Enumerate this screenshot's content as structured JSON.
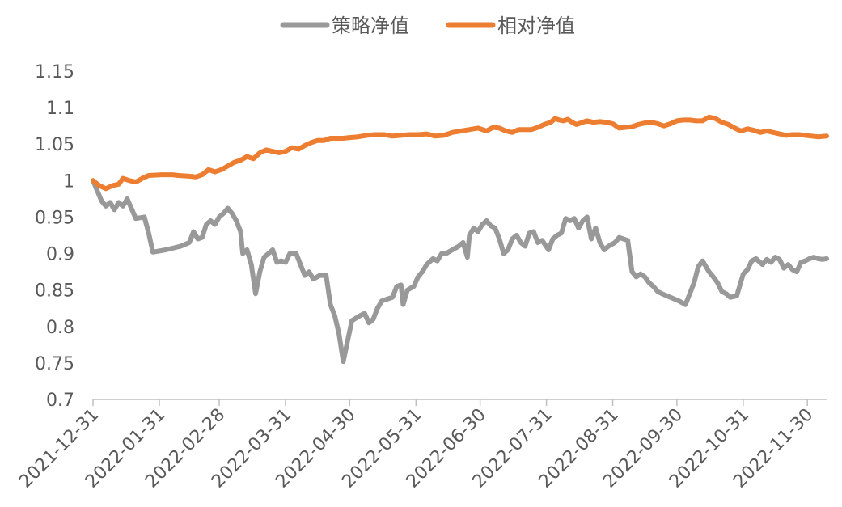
{
  "chart_data": {
    "type": "line",
    "title": "",
    "xlabel": "",
    "ylabel": "",
    "ylim": [
      0.7,
      1.15
    ],
    "yticks": [
      "0.7",
      "0.75",
      "0.8",
      "0.85",
      "0.9",
      "0.95",
      "1",
      "1.05",
      "1.1",
      "1.15"
    ],
    "xlim": [
      "2021-12-31",
      "2022-12-09"
    ],
    "xticks": [
      "2021-12-31",
      "2022-01-31",
      "2022-02-28",
      "2022-03-31",
      "2022-04-30",
      "2022-05-31",
      "2022-06-30",
      "2022-07-31",
      "2022-08-31",
      "2022-09-30",
      "2022-10-31",
      "2022-11-30"
    ],
    "grid": false,
    "legend_position": "top-center",
    "series": [
      {
        "name": "策略净值",
        "color": "#999999",
        "points": [
          [
            "2021-12-31",
            1.0
          ],
          [
            "2022-01-04",
            0.972
          ],
          [
            "2022-01-06",
            0.965
          ],
          [
            "2022-01-08",
            0.97
          ],
          [
            "2022-01-10",
            0.96
          ],
          [
            "2022-01-12",
            0.97
          ],
          [
            "2022-01-14",
            0.965
          ],
          [
            "2022-01-16",
            0.975
          ],
          [
            "2022-01-20",
            0.948
          ],
          [
            "2022-01-24",
            0.95
          ],
          [
            "2022-01-26",
            0.928
          ],
          [
            "2022-01-28",
            0.902
          ],
          [
            "2022-02-03",
            0.905
          ],
          [
            "2022-02-10",
            0.91
          ],
          [
            "2022-02-14",
            0.915
          ],
          [
            "2022-02-16",
            0.93
          ],
          [
            "2022-02-18",
            0.92
          ],
          [
            "2022-02-20",
            0.922
          ],
          [
            "2022-02-22",
            0.94
          ],
          [
            "2022-02-24",
            0.945
          ],
          [
            "2022-02-26",
            0.94
          ],
          [
            "2022-02-28",
            0.95
          ],
          [
            "2022-03-02",
            0.955
          ],
          [
            "2022-03-04",
            0.962
          ],
          [
            "2022-03-06",
            0.955
          ],
          [
            "2022-03-08",
            0.945
          ],
          [
            "2022-03-10",
            0.93
          ],
          [
            "2022-03-11",
            0.9
          ],
          [
            "2022-03-13",
            0.905
          ],
          [
            "2022-03-15",
            0.885
          ],
          [
            "2022-03-17",
            0.845
          ],
          [
            "2022-03-19",
            0.875
          ],
          [
            "2022-03-21",
            0.895
          ],
          [
            "2022-03-23",
            0.9
          ],
          [
            "2022-03-25",
            0.905
          ],
          [
            "2022-03-27",
            0.888
          ],
          [
            "2022-03-29",
            0.89
          ],
          [
            "2022-03-31",
            0.888
          ],
          [
            "2022-04-02",
            0.9
          ],
          [
            "2022-04-05",
            0.9
          ],
          [
            "2022-04-07",
            0.885
          ],
          [
            "2022-04-09",
            0.87
          ],
          [
            "2022-04-11",
            0.875
          ],
          [
            "2022-04-13",
            0.865
          ],
          [
            "2022-04-16",
            0.87
          ],
          [
            "2022-04-19",
            0.87
          ],
          [
            "2022-04-21",
            0.83
          ],
          [
            "2022-04-23",
            0.815
          ],
          [
            "2022-04-25",
            0.79
          ],
          [
            "2022-04-27",
            0.752
          ],
          [
            "2022-04-29",
            0.78
          ],
          [
            "2022-05-01",
            0.808
          ],
          [
            "2022-05-05",
            0.815
          ],
          [
            "2022-05-07",
            0.818
          ],
          [
            "2022-05-09",
            0.805
          ],
          [
            "2022-05-11",
            0.81
          ],
          [
            "2022-05-13",
            0.825
          ],
          [
            "2022-05-15",
            0.835
          ],
          [
            "2022-05-18",
            0.838
          ],
          [
            "2022-05-20",
            0.84
          ],
          [
            "2022-05-22",
            0.855
          ],
          [
            "2022-05-24",
            0.857
          ],
          [
            "2022-05-25",
            0.83
          ],
          [
            "2022-05-27",
            0.85
          ],
          [
            "2022-05-30",
            0.855
          ],
          [
            "2022-06-01",
            0.868
          ],
          [
            "2022-06-03",
            0.875
          ],
          [
            "2022-06-05",
            0.885
          ],
          [
            "2022-06-08",
            0.893
          ],
          [
            "2022-06-10",
            0.89
          ],
          [
            "2022-06-12",
            0.9
          ],
          [
            "2022-06-14",
            0.9
          ],
          [
            "2022-06-17",
            0.905
          ],
          [
            "2022-06-20",
            0.91
          ],
          [
            "2022-06-22",
            0.915
          ],
          [
            "2022-06-24",
            0.895
          ],
          [
            "2022-06-25",
            0.925
          ],
          [
            "2022-06-27",
            0.935
          ],
          [
            "2022-06-29",
            0.93
          ],
          [
            "2022-07-01",
            0.94
          ],
          [
            "2022-07-03",
            0.945
          ],
          [
            "2022-07-05",
            0.938
          ],
          [
            "2022-07-07",
            0.935
          ],
          [
            "2022-07-09",
            0.92
          ],
          [
            "2022-07-11",
            0.9
          ],
          [
            "2022-07-13",
            0.905
          ],
          [
            "2022-07-15",
            0.92
          ],
          [
            "2022-07-17",
            0.925
          ],
          [
            "2022-07-19",
            0.915
          ],
          [
            "2022-07-21",
            0.91
          ],
          [
            "2022-07-23",
            0.928
          ],
          [
            "2022-07-25",
            0.93
          ],
          [
            "2022-07-27",
            0.915
          ],
          [
            "2022-07-29",
            0.918
          ],
          [
            "2022-08-01",
            0.905
          ],
          [
            "2022-08-03",
            0.92
          ],
          [
            "2022-08-05",
            0.925
          ],
          [
            "2022-08-07",
            0.928
          ],
          [
            "2022-08-09",
            0.948
          ],
          [
            "2022-08-11",
            0.945
          ],
          [
            "2022-08-13",
            0.948
          ],
          [
            "2022-08-15",
            0.935
          ],
          [
            "2022-08-17",
            0.945
          ],
          [
            "2022-08-19",
            0.95
          ],
          [
            "2022-08-21",
            0.92
          ],
          [
            "2022-08-23",
            0.935
          ],
          [
            "2022-08-25",
            0.915
          ],
          [
            "2022-08-27",
            0.905
          ],
          [
            "2022-08-29",
            0.91
          ],
          [
            "2022-09-01",
            0.915
          ],
          [
            "2022-09-03",
            0.922
          ],
          [
            "2022-09-05",
            0.92
          ],
          [
            "2022-09-07",
            0.918
          ],
          [
            "2022-09-09",
            0.875
          ],
          [
            "2022-09-11",
            0.868
          ],
          [
            "2022-09-13",
            0.872
          ],
          [
            "2022-09-15",
            0.868
          ],
          [
            "2022-09-17",
            0.86
          ],
          [
            "2022-09-19",
            0.855
          ],
          [
            "2022-09-21",
            0.848
          ],
          [
            "2022-09-23",
            0.845
          ],
          [
            "2022-09-27",
            0.84
          ],
          [
            "2022-10-01",
            0.835
          ],
          [
            "2022-10-04",
            0.83
          ],
          [
            "2022-10-06",
            0.845
          ],
          [
            "2022-10-08",
            0.86
          ],
          [
            "2022-10-10",
            0.882
          ],
          [
            "2022-10-12",
            0.89
          ],
          [
            "2022-10-15",
            0.875
          ],
          [
            "2022-10-17",
            0.868
          ],
          [
            "2022-10-19",
            0.86
          ],
          [
            "2022-10-21",
            0.848
          ],
          [
            "2022-10-23",
            0.845
          ],
          [
            "2022-10-25",
            0.84
          ],
          [
            "2022-10-28",
            0.842
          ],
          [
            "2022-10-31",
            0.872
          ],
          [
            "2022-11-02",
            0.878
          ],
          [
            "2022-11-04",
            0.89
          ],
          [
            "2022-11-06",
            0.893
          ],
          [
            "2022-11-09",
            0.885
          ],
          [
            "2022-11-11",
            0.892
          ],
          [
            "2022-11-13",
            0.888
          ],
          [
            "2022-11-15",
            0.895
          ],
          [
            "2022-11-17",
            0.892
          ],
          [
            "2022-11-19",
            0.88
          ],
          [
            "2022-11-21",
            0.885
          ],
          [
            "2022-11-23",
            0.878
          ],
          [
            "2022-11-25",
            0.875
          ],
          [
            "2022-11-27",
            0.888
          ],
          [
            "2022-11-29",
            0.89
          ],
          [
            "2022-12-01",
            0.893
          ],
          [
            "2022-12-03",
            0.895
          ],
          [
            "2022-12-05",
            0.893
          ],
          [
            "2022-12-07",
            0.892
          ],
          [
            "2022-12-09",
            0.893
          ]
        ]
      },
      {
        "name": "相对净值",
        "color": "#ED7D31",
        "points": [
          [
            "2021-12-31",
            1.0
          ],
          [
            "2022-01-03",
            0.993
          ],
          [
            "2022-01-06",
            0.989
          ],
          [
            "2022-01-09",
            0.993
          ],
          [
            "2022-01-12",
            0.995
          ],
          [
            "2022-01-14",
            1.003
          ],
          [
            "2022-01-17",
            1.0
          ],
          [
            "2022-01-20",
            0.998
          ],
          [
            "2022-01-23",
            1.003
          ],
          [
            "2022-01-26",
            1.007
          ],
          [
            "2022-02-01",
            1.008
          ],
          [
            "2022-02-06",
            1.008
          ],
          [
            "2022-02-09",
            1.007
          ],
          [
            "2022-02-14",
            1.006
          ],
          [
            "2022-02-17",
            1.005
          ],
          [
            "2022-02-20",
            1.008
          ],
          [
            "2022-02-23",
            1.015
          ],
          [
            "2022-02-26",
            1.012
          ],
          [
            "2022-03-01",
            1.015
          ],
          [
            "2022-03-04",
            1.02
          ],
          [
            "2022-03-07",
            1.025
          ],
          [
            "2022-03-10",
            1.028
          ],
          [
            "2022-03-13",
            1.033
          ],
          [
            "2022-03-16",
            1.03
          ],
          [
            "2022-03-19",
            1.038
          ],
          [
            "2022-03-22",
            1.042
          ],
          [
            "2022-03-25",
            1.04
          ],
          [
            "2022-03-28",
            1.038
          ],
          [
            "2022-03-31",
            1.04
          ],
          [
            "2022-04-03",
            1.045
          ],
          [
            "2022-04-06",
            1.043
          ],
          [
            "2022-04-09",
            1.048
          ],
          [
            "2022-04-12",
            1.052
          ],
          [
            "2022-04-15",
            1.055
          ],
          [
            "2022-04-18",
            1.055
          ],
          [
            "2022-04-21",
            1.058
          ],
          [
            "2022-04-24",
            1.058
          ],
          [
            "2022-04-27",
            1.058
          ],
          [
            "2022-04-30",
            1.059
          ],
          [
            "2022-05-04",
            1.06
          ],
          [
            "2022-05-08",
            1.062
          ],
          [
            "2022-05-12",
            1.063
          ],
          [
            "2022-05-16",
            1.063
          ],
          [
            "2022-05-20",
            1.061
          ],
          [
            "2022-05-24",
            1.062
          ],
          [
            "2022-05-28",
            1.063
          ],
          [
            "2022-06-01",
            1.063
          ],
          [
            "2022-06-05",
            1.064
          ],
          [
            "2022-06-09",
            1.061
          ],
          [
            "2022-06-13",
            1.062
          ],
          [
            "2022-06-17",
            1.066
          ],
          [
            "2022-06-21",
            1.068
          ],
          [
            "2022-06-25",
            1.07
          ],
          [
            "2022-06-29",
            1.072
          ],
          [
            "2022-07-03",
            1.068
          ],
          [
            "2022-07-06",
            1.073
          ],
          [
            "2022-07-09",
            1.072
          ],
          [
            "2022-07-12",
            1.068
          ],
          [
            "2022-07-15",
            1.066
          ],
          [
            "2022-07-18",
            1.07
          ],
          [
            "2022-07-21",
            1.07
          ],
          [
            "2022-07-24",
            1.07
          ],
          [
            "2022-07-27",
            1.073
          ],
          [
            "2022-07-30",
            1.077
          ],
          [
            "2022-08-02",
            1.08
          ],
          [
            "2022-08-04",
            1.085
          ],
          [
            "2022-08-06",
            1.083
          ],
          [
            "2022-08-08",
            1.082
          ],
          [
            "2022-08-10",
            1.084
          ],
          [
            "2022-08-12",
            1.08
          ],
          [
            "2022-08-14",
            1.077
          ],
          [
            "2022-08-16",
            1.079
          ],
          [
            "2022-08-19",
            1.082
          ],
          [
            "2022-08-22",
            1.08
          ],
          [
            "2022-08-25",
            1.081
          ],
          [
            "2022-08-28",
            1.08
          ],
          [
            "2022-08-31",
            1.078
          ],
          [
            "2022-09-03",
            1.072
          ],
          [
            "2022-09-06",
            1.073
          ],
          [
            "2022-09-09",
            1.074
          ],
          [
            "2022-09-12",
            1.077
          ],
          [
            "2022-09-15",
            1.079
          ],
          [
            "2022-09-18",
            1.08
          ],
          [
            "2022-09-21",
            1.078
          ],
          [
            "2022-09-24",
            1.075
          ],
          [
            "2022-09-27",
            1.078
          ],
          [
            "2022-09-30",
            1.082
          ],
          [
            "2022-10-03",
            1.083
          ],
          [
            "2022-10-06",
            1.083
          ],
          [
            "2022-10-09",
            1.082
          ],
          [
            "2022-10-12",
            1.082
          ],
          [
            "2022-10-15",
            1.087
          ],
          [
            "2022-10-18",
            1.085
          ],
          [
            "2022-10-21",
            1.08
          ],
          [
            "2022-10-24",
            1.077
          ],
          [
            "2022-10-27",
            1.072
          ],
          [
            "2022-10-30",
            1.068
          ],
          [
            "2022-11-02",
            1.071
          ],
          [
            "2022-11-05",
            1.069
          ],
          [
            "2022-11-08",
            1.066
          ],
          [
            "2022-11-11",
            1.068
          ],
          [
            "2022-11-14",
            1.066
          ],
          [
            "2022-11-17",
            1.064
          ],
          [
            "2022-11-20",
            1.062
          ],
          [
            "2022-11-23",
            1.063
          ],
          [
            "2022-11-26",
            1.063
          ],
          [
            "2022-11-29",
            1.062
          ],
          [
            "2022-12-02",
            1.061
          ],
          [
            "2022-12-05",
            1.06
          ],
          [
            "2022-12-09",
            1.061
          ]
        ]
      }
    ]
  }
}
